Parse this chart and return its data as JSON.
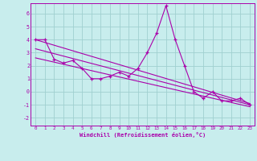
{
  "xlabel": "Windchill (Refroidissement éolien,°C)",
  "background_color": "#c8eded",
  "grid_color": "#a0d0d0",
  "line_color": "#aa00aa",
  "spine_color": "#aa00aa",
  "xlim": [
    -0.5,
    23.5
  ],
  "ylim": [
    -2.6,
    6.8
  ],
  "yticks": [
    -2,
    -1,
    0,
    1,
    2,
    3,
    4,
    5,
    6
  ],
  "xticks": [
    0,
    1,
    2,
    3,
    4,
    5,
    6,
    7,
    8,
    9,
    10,
    11,
    12,
    13,
    14,
    15,
    16,
    17,
    18,
    19,
    20,
    21,
    22,
    23
  ],
  "data_x": [
    0,
    1,
    2,
    3,
    4,
    5,
    6,
    7,
    8,
    9,
    10,
    11,
    12,
    13,
    14,
    15,
    16,
    17,
    18,
    19,
    20,
    21,
    22,
    23
  ],
  "data_y": [
    4.0,
    4.0,
    2.5,
    2.2,
    2.4,
    1.8,
    1.0,
    1.0,
    1.2,
    1.5,
    1.2,
    1.8,
    3.0,
    4.5,
    6.6,
    4.0,
    2.0,
    0.0,
    -0.5,
    0.0,
    -0.7,
    -0.7,
    -0.5,
    -1.0
  ],
  "trend1_x": [
    0,
    23
  ],
  "trend1_y": [
    4.0,
    -0.9
  ],
  "trend2_x": [
    0,
    23
  ],
  "trend2_y": [
    2.6,
    -1.15
  ],
  "trend3_x": [
    0,
    23
  ],
  "trend3_y": [
    3.3,
    -1.0
  ],
  "figsize": [
    3.2,
    2.0
  ],
  "dpi": 100
}
